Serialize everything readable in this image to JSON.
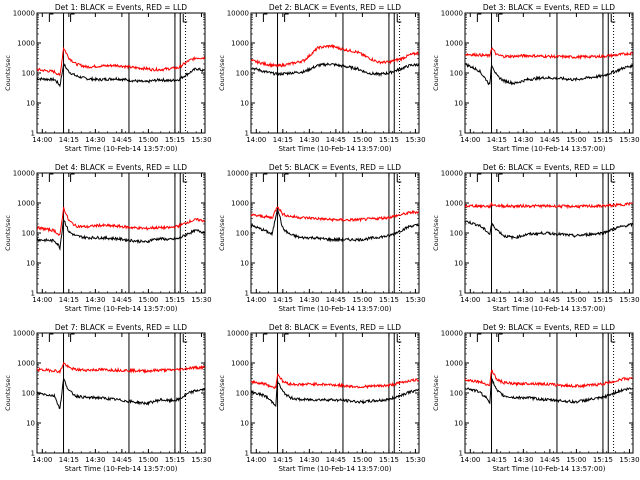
{
  "colors": {
    "events": "#000000",
    "lld": "#ff0000",
    "axis": "#000000"
  },
  "chart_data": {
    "type": "line",
    "yscale": "log",
    "ylim": [
      1,
      10000
    ],
    "xlim_minutes": [
      0,
      95
    ],
    "ylabel": "Counts/sec",
    "xlabel": "Start Time (10-Feb-14 13:57:00)",
    "x_ticks": [
      {
        "label": "14:00",
        "t": 3
      },
      {
        "label": "14:15",
        "t": 18
      },
      {
        "label": "14:30",
        "t": 33
      },
      {
        "label": "14:45",
        "t": 48
      },
      {
        "label": "15:00",
        "t": 63
      },
      {
        "label": "15:15",
        "t": 78
      },
      {
        "label": "15:30",
        "t": 93
      }
    ],
    "y_ticks": [
      {
        "label": "1",
        "v": 1
      },
      {
        "label": "10",
        "v": 10
      },
      {
        "label": "100",
        "v": 100
      },
      {
        "label": "1000",
        "v": 1000
      },
      {
        "label": "10000",
        "v": 10000
      }
    ],
    "series_names": [
      "Events",
      "LLD"
    ],
    "panels": [
      {
        "title": "Det 1: BLACK = Events, RED = LLD",
        "markers": {
          "F": 7,
          "E": 19,
          "vlines": [
            15,
            52,
            78,
            81
          ],
          "dotted": [
            84
          ]
        },
        "series": [
          {
            "name": "Events",
            "t": [
              0,
              10,
              12,
              13,
              15,
              18,
              22,
              28,
              35,
              45,
              55,
              62,
              65,
              70,
              75,
              80,
              86,
              90,
              94
            ],
            "v": [
              65,
              60,
              45,
              38,
              200,
              110,
              80,
              65,
              60,
              65,
              55,
              50,
              55,
              60,
              55,
              60,
              100,
              140,
              120
            ]
          },
          {
            "name": "LLD",
            "t": [
              0,
              10,
              12,
              13,
              15,
              18,
              22,
              28,
              35,
              45,
              55,
              62,
              65,
              70,
              75,
              80,
              86,
              90,
              94
            ],
            "v": [
              130,
              110,
              90,
              80,
              700,
              320,
              200,
              160,
              170,
              180,
              150,
              140,
              130,
              130,
              140,
              150,
              260,
              320,
              320
            ]
          }
        ]
      },
      {
        "title": "Det 2: BLACK = Events, RED = LLD",
        "markers": {
          "F": 7,
          "E": 19,
          "vlines": [
            15,
            52,
            78,
            81
          ],
          "dotted": [
            84
          ]
        },
        "series": [
          {
            "name": "Events",
            "t": [
              0,
              8,
              15,
              22,
              30,
              38,
              45,
              52,
              60,
              66,
              72,
              78,
              85,
              90,
              94
            ],
            "v": [
              150,
              110,
              90,
              100,
              110,
              180,
              200,
              170,
              140,
              100,
              90,
              100,
              140,
              180,
              190
            ]
          },
          {
            "name": "LLD",
            "t": [
              0,
              8,
              15,
              22,
              30,
              38,
              45,
              52,
              60,
              66,
              72,
              78,
              85,
              90,
              94
            ],
            "v": [
              260,
              200,
              170,
              200,
              260,
              700,
              800,
              620,
              500,
              330,
              230,
              230,
              300,
              400,
              460
            ]
          }
        ]
      },
      {
        "title": "Det 3: BLACK = Events, RED = LLD",
        "markers": {
          "F": 7,
          "E": 19,
          "vlines": [
            15,
            52,
            78,
            81
          ],
          "dotted": [
            84
          ]
        },
        "series": [
          {
            "name": "Events",
            "t": [
              0,
              8,
              12,
              14,
              15,
              18,
              22,
              28,
              35,
              45,
              55,
              62,
              70,
              78,
              86,
              90,
              94
            ],
            "v": [
              200,
              120,
              60,
              40,
              200,
              80,
              55,
              45,
              60,
              70,
              65,
              60,
              70,
              80,
              120,
              150,
              170
            ]
          },
          {
            "name": "LLD",
            "t": [
              0,
              8,
              12,
              14,
              15,
              18,
              22,
              28,
              35,
              45,
              55,
              62,
              70,
              78,
              86,
              90,
              94
            ],
            "v": [
              420,
              400,
              380,
              370,
              700,
              400,
              360,
              360,
              380,
              360,
              350,
              340,
              350,
              360,
              400,
              430,
              450
            ]
          }
        ]
      },
      {
        "title": "Det 4: BLACK = Events, RED = LLD",
        "markers": {
          "F": 7,
          "E": 19,
          "vlines": [
            15,
            52,
            78,
            81
          ],
          "dotted": [
            84
          ]
        },
        "series": [
          {
            "name": "Events",
            "t": [
              0,
              10,
              12,
              13,
              15,
              18,
              22,
              28,
              35,
              45,
              55,
              62,
              65,
              70,
              75,
              80,
              86,
              90,
              94
            ],
            "v": [
              60,
              55,
              40,
              32,
              300,
              110,
              80,
              70,
              70,
              65,
              55,
              50,
              60,
              65,
              60,
              65,
              100,
              120,
              110
            ]
          },
          {
            "name": "LLD",
            "t": [
              0,
              10,
              12,
              13,
              15,
              18,
              22,
              28,
              35,
              45,
              55,
              62,
              65,
              70,
              75,
              80,
              86,
              90,
              94
            ],
            "v": [
              150,
              120,
              90,
              80,
              700,
              260,
              170,
              160,
              180,
              170,
              150,
              140,
              150,
              150,
              150,
              170,
              240,
              280,
              260
            ]
          }
        ]
      },
      {
        "title": "Det 5: BLACK = Events, RED = LLD",
        "markers": {
          "F": 7,
          "E": 19,
          "vlines": [
            15,
            52,
            78,
            81
          ],
          "dotted": [
            84
          ]
        },
        "series": [
          {
            "name": "Events",
            "t": [
              0,
              8,
              12,
              15,
              18,
              22,
              28,
              35,
              45,
              55,
              62,
              70,
              78,
              86,
              90,
              94
            ],
            "v": [
              180,
              120,
              90,
              700,
              140,
              90,
              70,
              70,
              60,
              60,
              60,
              70,
              80,
              130,
              170,
              180
            ]
          },
          {
            "name": "LLD",
            "t": [
              0,
              8,
              12,
              15,
              18,
              22,
              28,
              35,
              45,
              55,
              62,
              70,
              78,
              86,
              90,
              94
            ],
            "v": [
              400,
              350,
              320,
              800,
              420,
              360,
              330,
              310,
              280,
              270,
              280,
              300,
              330,
              420,
              480,
              500
            ]
          }
        ]
      },
      {
        "title": "Det 6: BLACK = Events, RED = LLD",
        "markers": {
          "F": 7,
          "E": 19,
          "vlines": [
            15,
            52,
            78,
            81
          ],
          "dotted": [
            84
          ]
        },
        "series": [
          {
            "name": "Events",
            "t": [
              0,
              8,
              12,
              14,
              15,
              18,
              22,
              28,
              35,
              45,
              55,
              62,
              70,
              78,
              86,
              90,
              94
            ],
            "v": [
              250,
              180,
              120,
              90,
              200,
              130,
              80,
              70,
              90,
              100,
              90,
              80,
              90,
              100,
              150,
              170,
              190
            ]
          },
          {
            "name": "LLD",
            "t": [
              0,
              8,
              12,
              14,
              15,
              18,
              22,
              28,
              35,
              45,
              55,
              62,
              70,
              78,
              86,
              90,
              94
            ],
            "v": [
              800,
              800,
              780,
              760,
              900,
              820,
              790,
              780,
              800,
              790,
              780,
              770,
              780,
              800,
              850,
              900,
              950
            ]
          }
        ]
      },
      {
        "title": "Det 7: BLACK = Events, RED = LLD",
        "markers": {
          "F": 7,
          "E": 19,
          "vlines": [
            15,
            52,
            78,
            81
          ],
          "dotted": [
            84
          ]
        },
        "series": [
          {
            "name": "Events",
            "t": [
              0,
              10,
              12,
              13,
              15,
              18,
              22,
              28,
              35,
              45,
              55,
              62,
              65,
              70,
              75,
              80,
              86,
              90,
              94
            ],
            "v": [
              100,
              80,
              40,
              30,
              300,
              120,
              80,
              70,
              70,
              60,
              50,
              45,
              50,
              60,
              55,
              60,
              100,
              120,
              130
            ]
          },
          {
            "name": "LLD",
            "t": [
              0,
              10,
              12,
              13,
              15,
              18,
              22,
              28,
              35,
              45,
              55,
              62,
              65,
              70,
              75,
              80,
              86,
              90,
              94
            ],
            "v": [
              600,
              560,
              520,
              500,
              1000,
              700,
              600,
              580,
              600,
              580,
              560,
              540,
              560,
              580,
              580,
              600,
              680,
              700,
              720
            ]
          }
        ]
      },
      {
        "title": "Det 8: BLACK = Events, RED = LLD",
        "markers": {
          "F": 7,
          "E": 19,
          "vlines": [
            15,
            52,
            78,
            81
          ],
          "dotted": [
            84
          ]
        },
        "series": [
          {
            "name": "Events",
            "t": [
              0,
              8,
              12,
              14,
              15,
              18,
              22,
              28,
              35,
              45,
              55,
              62,
              70,
              78,
              86,
              90,
              94
            ],
            "v": [
              110,
              80,
              50,
              40,
              250,
              110,
              70,
              60,
              60,
              60,
              55,
              50,
              55,
              60,
              90,
              110,
              120
            ]
          },
          {
            "name": "LLD",
            "t": [
              0,
              8,
              12,
              14,
              15,
              18,
              22,
              28,
              35,
              45,
              55,
              62,
              70,
              78,
              86,
              90,
              94
            ],
            "v": [
              240,
              200,
              160,
              150,
              450,
              240,
              200,
              190,
              200,
              190,
              170,
              160,
              170,
              180,
              230,
              260,
              270
            ]
          }
        ]
      },
      {
        "title": "Det 9: BLACK = Events, RED = LLD",
        "markers": {
          "F": 7,
          "E": 19,
          "vlines": [
            15,
            52,
            78,
            81
          ],
          "dotted": [
            84
          ]
        },
        "series": [
          {
            "name": "Events",
            "t": [
              0,
              8,
              12,
              14,
              15,
              18,
              22,
              28,
              35,
              45,
              55,
              62,
              70,
              78,
              86,
              90,
              94
            ],
            "v": [
              150,
              110,
              70,
              50,
              300,
              120,
              80,
              70,
              70,
              60,
              55,
              50,
              60,
              70,
              110,
              130,
              140
            ]
          },
          {
            "name": "LLD",
            "t": [
              0,
              8,
              12,
              14,
              15,
              18,
              22,
              28,
              35,
              45,
              55,
              62,
              70,
              78,
              86,
              90,
              94
            ],
            "v": [
              280,
              240,
              200,
              180,
              600,
              280,
              220,
              200,
              210,
              200,
              180,
              170,
              180,
              200,
              260,
              300,
              300
            ]
          }
        ]
      }
    ]
  }
}
